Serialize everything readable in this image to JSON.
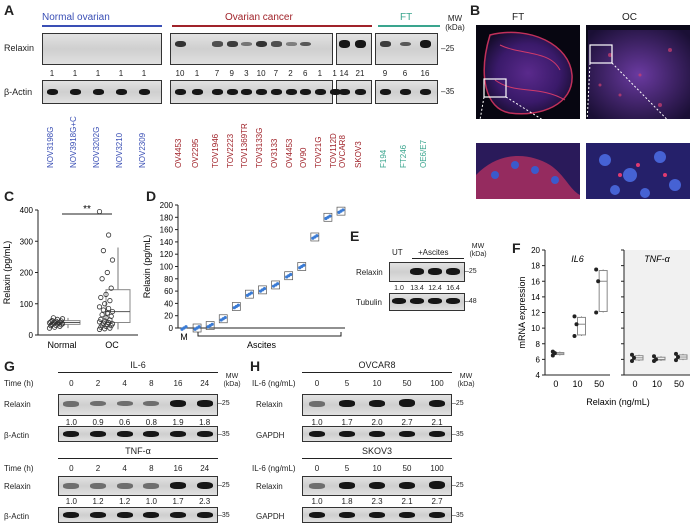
{
  "panels": {
    "A": "A",
    "B": "B",
    "C": "C",
    "D": "D",
    "E": "E",
    "F": "F",
    "G": "G",
    "H": "H"
  },
  "colors": {
    "normal": "#3a4fb5",
    "cancer": "#a0232a",
    "ft": "#3aa58e",
    "oc_box": "#ffffff",
    "blue_point": "#3a7bd5"
  },
  "panelA": {
    "groups": {
      "normal": "Normal ovarian",
      "cancer": "Ovarian cancer",
      "ft": "FT"
    },
    "mw_header": "MW\n(kDa)",
    "mw_header_line1": "MW",
    "mw_header_line2": "(kDa)",
    "row1": "Relaxin",
    "row2": "β-Actin",
    "mw1": "25",
    "mw2": "35",
    "values": [
      "1",
      "1",
      "1",
      "1",
      "1",
      "10",
      "1",
      "7",
      "9",
      "3",
      "10",
      "7",
      "2",
      "6",
      "1",
      "1",
      "14",
      "21",
      "9",
      "6",
      "16"
    ],
    "lanes": [
      "NOV3198G",
      "NOV3918G+C",
      "NOV3202G",
      "NOV3210",
      "NOV2309",
      "OV4453",
      "OV2295",
      "TOV1946",
      "TOV2223",
      "TOV1369TR",
      "TOV3133G",
      "OV3133",
      "OV4453",
      "OV90",
      "TOV21G",
      "TOV112D",
      "OVCAR8",
      "SKOV3",
      "F194",
      "FT246",
      "OE6/E7"
    ]
  },
  "panelB": {
    "left": "FT",
    "right": "OC"
  },
  "panelC": {
    "ylabel": "Relaxin (pg/mL)",
    "sig": "**",
    "categories": [
      "Normal",
      "OC"
    ],
    "yticks": [
      "0",
      "100",
      "200",
      "300",
      "400"
    ]
  },
  "panelD": {
    "ylabel": "Relaxin (pg/mL)",
    "yticks": [
      "0",
      "20",
      "40",
      "60",
      "80",
      "100",
      "120",
      "140",
      "160",
      "180",
      "200"
    ],
    "xlabel_m": "M",
    "bracket": "Ascites"
  },
  "panelE": {
    "ut": "UT",
    "ascites": "+Ascites",
    "mw_line1": "MW",
    "mw_line2": "(kDa)",
    "row1": "Relaxin",
    "row2": "Tubulin",
    "mw1": "25",
    "mw2": "48",
    "values": [
      "1.0",
      "13.4",
      "12.4",
      "16.4"
    ]
  },
  "panelF": {
    "ylabel": "mRNA expression",
    "xlabel": "Relaxin (ng/mL)",
    "titles": [
      "IL6",
      "TNF-α"
    ],
    "xticks": [
      "0",
      "10",
      "50"
    ],
    "yticks": [
      "4",
      "6",
      "8",
      "10",
      "12",
      "14",
      "16",
      "18",
      "20"
    ]
  },
  "panelG": {
    "title1": "IL-6",
    "title2": "TNF-α",
    "time_label": "Time (h)",
    "times": [
      "0",
      "2",
      "4",
      "8",
      "16",
      "24"
    ],
    "mw_line1": "MW",
    "mw_line2": "(kDa)",
    "row1": "Relaxin",
    "row2": "β-Actin",
    "mw1": "25",
    "mw2": "35",
    "values1": [
      "1.0",
      "0.9",
      "0.6",
      "0.8",
      "1.9",
      "1.8"
    ],
    "values2": [
      "1.0",
      "1.2",
      "1.2",
      "1.0",
      "1.7",
      "2.3"
    ]
  },
  "panelH": {
    "title1": "OVCAR8",
    "title2": "SKOV3",
    "dose_label": "IL-6 (ng/mL)",
    "doses": [
      "0",
      "5",
      "10",
      "50",
      "100"
    ],
    "mw_line1": "MW",
    "mw_line2": "(kDa)",
    "row1": "Relaxin",
    "row2": "GAPDH",
    "mw1": "25",
    "mw2": "35",
    "values1": [
      "1.0",
      "1.7",
      "2.0",
      "2.7",
      "2.1"
    ],
    "values2": [
      "1.0",
      "1.8",
      "2.3",
      "2.1",
      "2.7"
    ]
  },
  "chart_data": [
    {
      "type": "scatter",
      "panel": "C",
      "ylabel": "Relaxin (pg/mL)",
      "ylim": [
        0,
        400
      ],
      "categories": [
        "Normal",
        "OC"
      ],
      "series": [
        {
          "values": [
            22,
            25,
            28,
            30,
            31,
            33,
            34,
            35,
            36,
            37,
            38,
            39,
            40,
            41,
            42,
            44,
            45,
            46,
            50,
            52,
            55
          ]
        },
        {
          "values": [
            18,
            20,
            22,
            25,
            28,
            30,
            32,
            34,
            36,
            38,
            40,
            42,
            45,
            48,
            50,
            55,
            60,
            65,
            70,
            75,
            80,
            85,
            90,
            100,
            110,
            120,
            130,
            150,
            180,
            200,
            240,
            270,
            320,
            395
          ]
        }
      ],
      "box": {
        "Normal": {
          "q1": 34,
          "median": 40,
          "q3": 46,
          "whisker_low": 22,
          "whisker_high": 55
        },
        "OC": {
          "q1": 40,
          "median": 75,
          "q3": 145,
          "whisker_low": 18,
          "whisker_high": 280
        }
      }
    },
    {
      "type": "scatter",
      "panel": "D",
      "ylabel": "Relaxin (pg/mL)",
      "ylim": [
        0,
        200
      ],
      "x": [
        "M",
        "1",
        "2",
        "3",
        "4",
        "5",
        "6",
        "7",
        "8",
        "9",
        "10",
        "11",
        "12"
      ],
      "series": [
        {
          "values": [
            0,
            0,
            4,
            15,
            35,
            55,
            62,
            70,
            85,
            100,
            148,
            180,
            190
          ]
        }
      ]
    },
    {
      "type": "scatter",
      "panel": "F-IL6",
      "title": "IL6",
      "ylabel": "mRNA expression",
      "xlabel": "Relaxin (ng/mL)",
      "ylim": [
        4,
        20
      ],
      "categories": [
        "0",
        "10",
        "50"
      ],
      "series": [
        {
          "values": [
            [
              6.5,
              6.8,
              7.0
            ],
            [
              9,
              10.5,
              11.5
            ],
            [
              12,
              16,
              17.5
            ]
          ]
        }
      ]
    },
    {
      "type": "scatter",
      "panel": "F-TNF",
      "title": "TNF-α",
      "ylabel": "mRNA expression",
      "xlabel": "Relaxin (ng/mL)",
      "ylim": [
        4,
        20
      ],
      "categories": [
        "0",
        "10",
        "50"
      ],
      "series": [
        {
          "values": [
            [
              5.8,
              6.2,
              6.6
            ],
            [
              5.8,
              6.0,
              6.4
            ],
            [
              5.9,
              6.3,
              6.7
            ]
          ]
        }
      ]
    }
  ]
}
